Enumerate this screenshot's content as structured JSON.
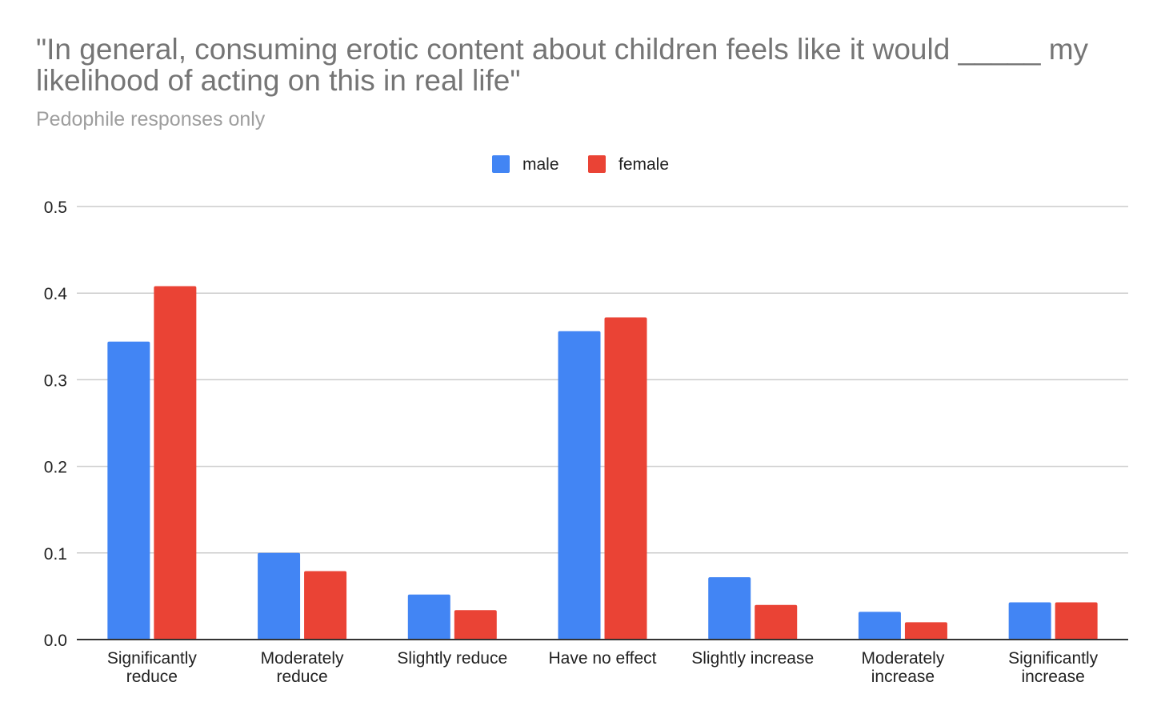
{
  "chart_data": {
    "type": "bar",
    "title": "\"In general, consuming erotic content about children feels like it would _____ my likelihood of acting on this in real life\"",
    "subtitle": "Pedophile responses only",
    "xlabel": "",
    "ylabel": "",
    "categories": [
      [
        "Significantly",
        "reduce"
      ],
      [
        "Moderately",
        "reduce"
      ],
      [
        "Slightly reduce"
      ],
      [
        "Have no effect"
      ],
      [
        "Slightly increase"
      ],
      [
        "Moderately",
        "increase"
      ],
      [
        "Significantly",
        "increase"
      ]
    ],
    "series": [
      {
        "name": "male",
        "color": "#4285f4",
        "values": [
          0.344,
          0.1,
          0.052,
          0.356,
          0.072,
          0.032,
          0.043
        ]
      },
      {
        "name": "female",
        "color": "#ea4335",
        "values": [
          0.408,
          0.079,
          0.034,
          0.372,
          0.04,
          0.02,
          0.043
        ]
      }
    ],
    "ylim": [
      0,
      0.5
    ],
    "yticks": [
      "0.0",
      "0.1",
      "0.2",
      "0.3",
      "0.4",
      "0.5"
    ],
    "grid": true,
    "legend_position": "top"
  }
}
